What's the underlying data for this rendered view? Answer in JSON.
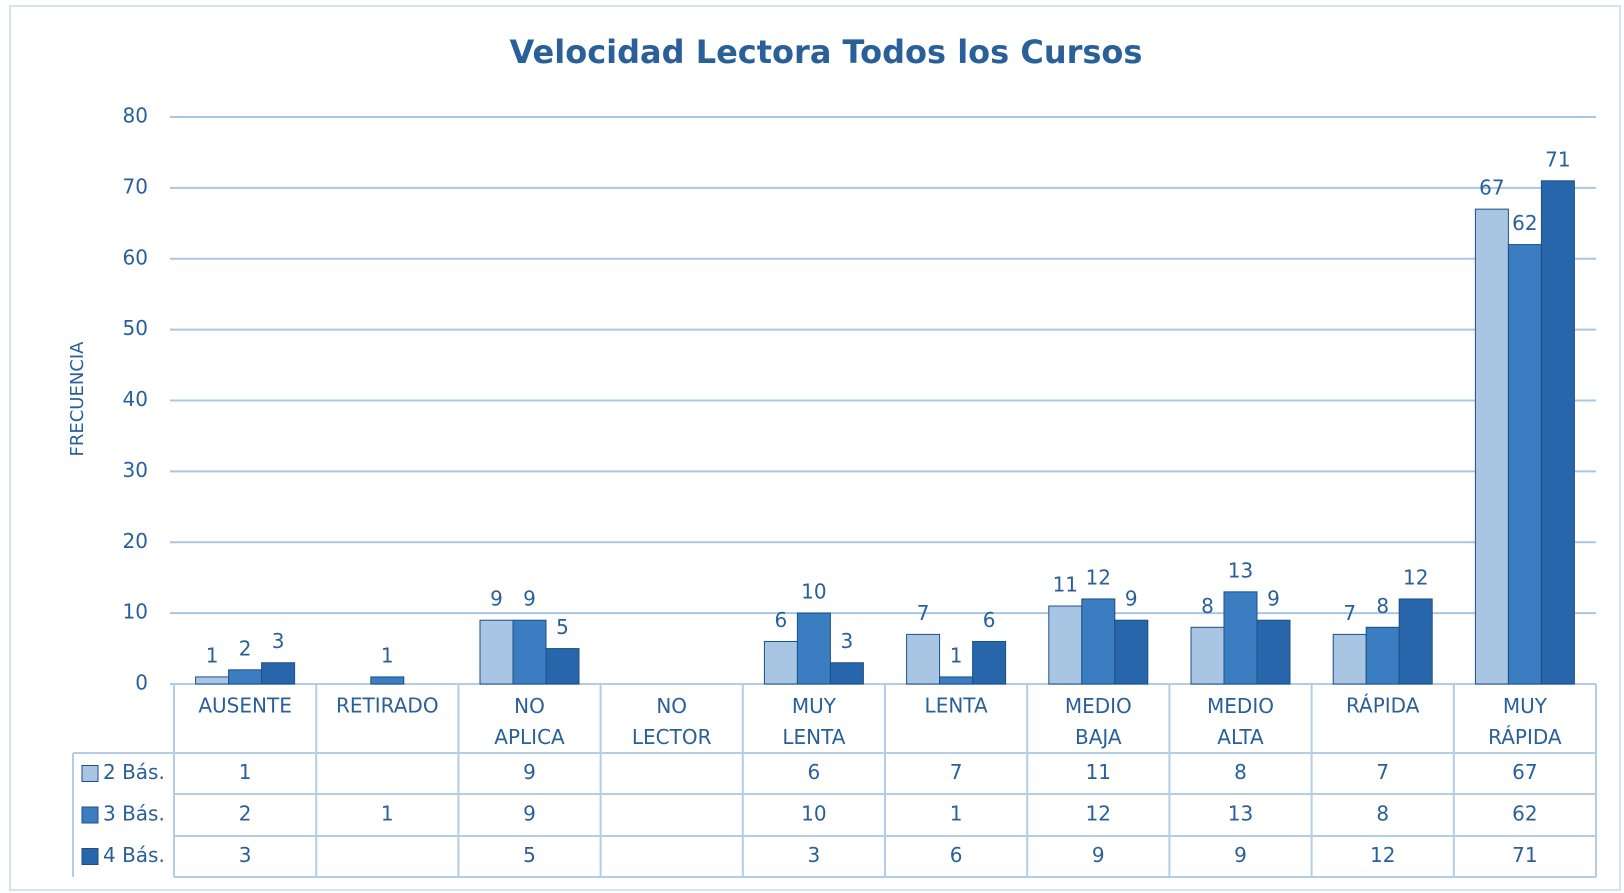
{
  "chart_data": {
    "type": "bar",
    "title": "Velocidad Lectora Todos los Cursos",
    "ylabel": "FRECUENCIA",
    "categories": [
      "AUSENTE",
      "RETIRADO",
      "NO APLICA",
      "NO LECTOR",
      "MUY LENTA",
      "LENTA",
      "MEDIO BAJA",
      "MEDIO ALTA",
      "RÁPIDA",
      "MUY RÁPIDA"
    ],
    "series": [
      {
        "name": "2 Bás.",
        "color": "#a8c6e4",
        "values": [
          1,
          null,
          9,
          null,
          6,
          7,
          11,
          8,
          7,
          67
        ]
      },
      {
        "name": "3 Bás.",
        "color": "#3a7dc1",
        "values": [
          2,
          1,
          9,
          null,
          10,
          1,
          12,
          13,
          8,
          62
        ]
      },
      {
        "name": "4 Bás.",
        "color": "#2866ab",
        "values": [
          3,
          null,
          5,
          null,
          3,
          6,
          9,
          9,
          12,
          71
        ]
      }
    ],
    "ylim": [
      0,
      80
    ],
    "yticks": [
      0,
      10,
      20,
      30,
      40,
      50,
      60,
      70,
      80
    ],
    "grid": true,
    "legend": "table"
  }
}
